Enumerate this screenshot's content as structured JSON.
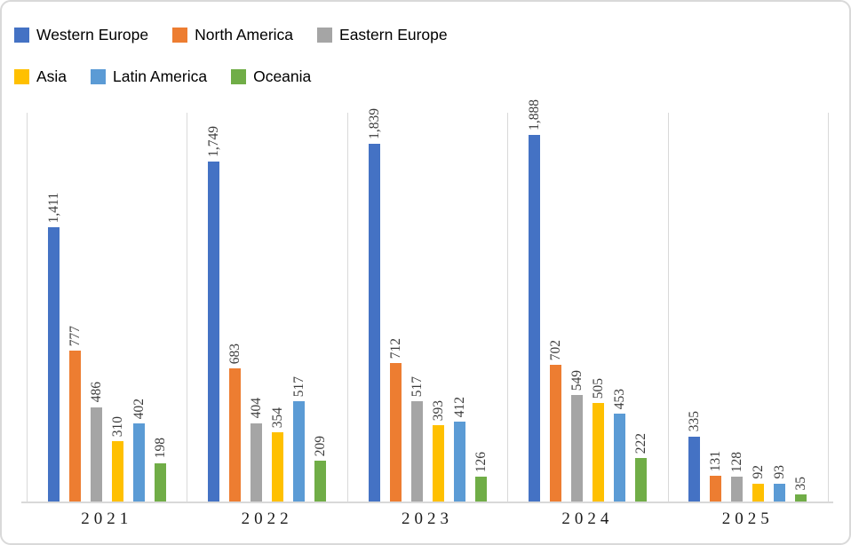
{
  "legend": {
    "rows": [
      [
        0,
        1,
        2
      ],
      [
        3,
        4,
        5
      ]
    ]
  },
  "chart_data": {
    "type": "bar",
    "categories": [
      "2021",
      "2022",
      "2023",
      "2024",
      "2025"
    ],
    "series": [
      {
        "name": "Western Europe",
        "color": "#4472C4",
        "values": [
          1411,
          1749,
          1839,
          1888,
          335
        ]
      },
      {
        "name": "North America",
        "color": "#ED7D31",
        "values": [
          777,
          683,
          712,
          702,
          131
        ]
      },
      {
        "name": "Eastern Europe",
        "color": "#A5A5A5",
        "values": [
          486,
          404,
          517,
          549,
          128
        ]
      },
      {
        "name": "Asia",
        "color": "#FFC000",
        "values": [
          310,
          354,
          393,
          505,
          92
        ]
      },
      {
        "name": "Latin America",
        "color": "#5B9BD5",
        "values": [
          402,
          517,
          412,
          453,
          93
        ]
      },
      {
        "name": "Oceania",
        "color": "#70AD47",
        "values": [
          198,
          209,
          126,
          222,
          35
        ]
      }
    ],
    "title": "",
    "xlabel": "",
    "ylabel": "",
    "ylim": [
      0,
      2000
    ],
    "y_axis_visible": false,
    "data_labels": true,
    "data_label_rotation": 90,
    "data_label_format": "#,##0",
    "legend_position": "top-left",
    "gridlines": "vertical-category-separators",
    "axis_color": "#D9D9D9"
  }
}
